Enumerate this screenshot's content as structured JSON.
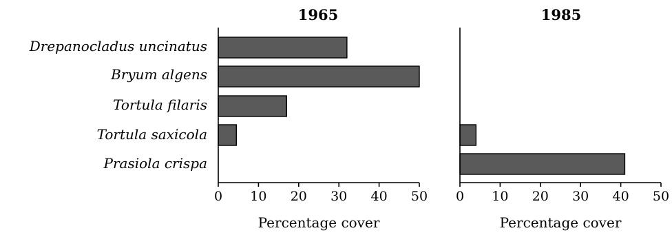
{
  "chart_data": [
    {
      "type": "bar",
      "orientation": "horizontal",
      "title": "1965",
      "categories": [
        "Drepanocladus uncinatus",
        "Bryum algens",
        "Tortula filaris",
        "Tortula saxicola",
        "Prasiola crispa"
      ],
      "values": [
        32,
        50,
        17,
        4.5,
        0
      ],
      "xlabel": "Percentage cover",
      "ylabel": "",
      "xlim": [
        0,
        50
      ],
      "xticks": [
        "0",
        "10",
        "20",
        "30",
        "40",
        "50"
      ],
      "bar_color": "#5a5a5a",
      "grid": false
    },
    {
      "type": "bar",
      "orientation": "horizontal",
      "title": "1985",
      "categories": [
        "Drepanocladus uncinatus",
        "Bryum algens",
        "Tortula filaris",
        "Tortula saxicola",
        "Prasiola crispa"
      ],
      "values": [
        0,
        0,
        0,
        4,
        41
      ],
      "xlabel": "Percentage cover",
      "ylabel": "",
      "xlim": [
        0,
        50
      ],
      "xticks": [
        "0",
        "10",
        "20",
        "30",
        "40",
        "50"
      ],
      "bar_color": "#5a5a5a",
      "grid": false
    }
  ]
}
